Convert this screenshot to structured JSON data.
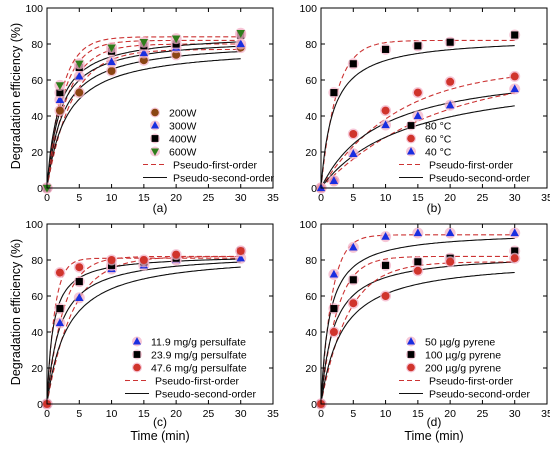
{
  "colors": {
    "brown": "#8B4513",
    "blue": "#1a2ee0",
    "black": "#000000",
    "green": "#2e7d1b",
    "red": "#d0342c",
    "pink_halo": "#f3b3c8",
    "fit_first": "#cc3333",
    "fit_second": "#111111"
  },
  "y_axis_label": "Degradation efficiency (%)",
  "x_axis_label": "Time (min)",
  "chart_data": [
    {
      "type": "scatter",
      "panel_label": "(a)",
      "xlim": [
        0,
        35
      ],
      "ylim": [
        0,
        100
      ],
      "xticks": [
        0,
        5,
        10,
        15,
        20,
        25,
        30,
        35
      ],
      "yticks": [
        0,
        20,
        40,
        60,
        80,
        100
      ],
      "xlabel": "",
      "ylabel": "Degradation efficiency (%)",
      "legend_position": "bottom-right",
      "series": [
        {
          "name": "200W",
          "marker": "circle",
          "color": "#8B4513",
          "x": [
            0,
            2,
            5,
            10,
            15,
            20,
            30
          ],
          "y": [
            0,
            43,
            53,
            65,
            71,
            74,
            78
          ],
          "fit_qe": 77,
          "fit_k1": 0.26
        },
        {
          "name": "300W",
          "marker": "triangle-up",
          "color": "#1a2ee0",
          "x": [
            0,
            2,
            5,
            10,
            15,
            20,
            30
          ],
          "y": [
            0,
            49,
            62,
            70,
            75,
            78,
            80
          ],
          "fit_qe": 80,
          "fit_k1": 0.32
        },
        {
          "name": "400W",
          "marker": "square",
          "color": "#000000",
          "x": [
            0,
            2,
            5,
            10,
            15,
            20,
            30
          ],
          "y": [
            0,
            53,
            67,
            76,
            79,
            80,
            85
          ],
          "fit_qe": 82,
          "fit_k1": 0.39
        },
        {
          "name": "600W",
          "marker": "triangle-down",
          "color": "#2e7d1b",
          "x": [
            0,
            2,
            5,
            10,
            15,
            20,
            30
          ],
          "y": [
            0,
            57,
            69,
            78,
            81,
            83,
            86
          ],
          "fit_qe": 84,
          "fit_k1": 0.44
        }
      ],
      "fits": [
        "Pseudo-first-order",
        "Pseudo-second-order"
      ]
    },
    {
      "type": "scatter",
      "panel_label": "(b)",
      "xlim": [
        0,
        35
      ],
      "ylim": [
        0,
        100
      ],
      "xticks": [
        0,
        5,
        10,
        15,
        20,
        25,
        30,
        35
      ],
      "yticks": [
        0,
        20,
        40,
        60,
        80,
        100
      ],
      "xlabel": "",
      "ylabel": "",
      "legend_position": "bottom-right",
      "series": [
        {
          "name": "80 °C",
          "marker": "square",
          "color": "#000000",
          "x": [
            0,
            2,
            5,
            10,
            15,
            20,
            30
          ],
          "y": [
            0,
            53,
            69,
            77,
            79,
            81,
            85
          ],
          "fit_qe": 82,
          "fit_k1": 0.42
        },
        {
          "name": "60 °C",
          "marker": "circle",
          "color": "#d0342c",
          "x": [
            0,
            2,
            5,
            10,
            15,
            20,
            30
          ],
          "y": [
            0,
            4,
            30,
            43,
            53,
            59,
            62
          ],
          "fit_qe": 67,
          "fit_k1": 0.085
        },
        {
          "name": "40 °C",
          "marker": "triangle-up",
          "color": "#1a2ee0",
          "x": [
            0,
            2,
            5,
            10,
            15,
            20,
            30
          ],
          "y": [
            0,
            4,
            19,
            35,
            40,
            46,
            55
          ],
          "fit_qe": 64,
          "fit_k1": 0.058
        }
      ],
      "fits": [
        "Pseudo-first-order",
        "Pseudo-second-order"
      ]
    },
    {
      "type": "scatter",
      "panel_label": "(c)",
      "xlim": [
        0,
        35
      ],
      "ylim": [
        0,
        100
      ],
      "xticks": [
        0,
        5,
        10,
        15,
        20,
        25,
        30,
        35
      ],
      "yticks": [
        0,
        20,
        40,
        60,
        80,
        100
      ],
      "xlabel": "Time (min)",
      "ylabel": "Degradation efficiency (%)",
      "legend_position": "bottom-right",
      "series": [
        {
          "name": "11.9 mg/g persulfate",
          "marker": "triangle-up",
          "color": "#1a2ee0",
          "x": [
            0,
            2,
            5,
            10,
            15,
            20,
            30
          ],
          "y": [
            0,
            45,
            59,
            75,
            77,
            80,
            81
          ],
          "fit_qe": 82,
          "fit_k1": 0.25
        },
        {
          "name": "23.9 mg/g persulfate",
          "marker": "square",
          "color": "#000000",
          "x": [
            0,
            2,
            5,
            10,
            15,
            20,
            30
          ],
          "y": [
            0,
            53,
            68,
            77,
            79,
            81,
            85
          ],
          "fit_qe": 82,
          "fit_k1": 0.4
        },
        {
          "name": "47.6 mg/g persulfate",
          "marker": "circle",
          "color": "#d0342c",
          "x": [
            0,
            2,
            5,
            10,
            15,
            20,
            30
          ],
          "y": [
            0,
            73,
            76,
            80,
            80,
            83,
            85
          ],
          "fit_qe": 81,
          "fit_k1": 0.85
        }
      ],
      "fits": [
        "Pseudo-first-order",
        "Pseudo-second-order"
      ]
    },
    {
      "type": "scatter",
      "panel_label": "(d)",
      "xlim": [
        0,
        35
      ],
      "ylim": [
        0,
        100
      ],
      "xticks": [
        0,
        5,
        10,
        15,
        20,
        25,
        30,
        35
      ],
      "yticks": [
        0,
        20,
        40,
        60,
        80,
        100
      ],
      "xlabel": "Time (min)",
      "ylabel": "",
      "legend_position": "bottom-right",
      "series": [
        {
          "name": "50 µg/g pyrene",
          "marker": "triangle-up",
          "color": "#1a2ee0",
          "x": [
            0,
            2,
            5,
            10,
            15,
            20,
            30
          ],
          "y": [
            0,
            72,
            87,
            93,
            95,
            95,
            95
          ],
          "fit_qe": 94,
          "fit_k1": 0.6
        },
        {
          "name": "100 µg/g pyrene",
          "marker": "square",
          "color": "#000000",
          "x": [
            0,
            2,
            5,
            10,
            15,
            20,
            30
          ],
          "y": [
            0,
            53,
            69,
            77,
            79,
            81,
            85
          ],
          "fit_qe": 82,
          "fit_k1": 0.4
        },
        {
          "name": "200 µg/g pyrene",
          "marker": "circle",
          "color": "#d0342c",
          "x": [
            0,
            2,
            5,
            10,
            15,
            20,
            30
          ],
          "y": [
            0,
            40,
            56,
            60,
            74,
            79,
            81
          ],
          "fit_qe": 79,
          "fit_k1": 0.24
        }
      ],
      "fits": [
        "Pseudo-first-order",
        "Pseudo-second-order"
      ]
    }
  ]
}
